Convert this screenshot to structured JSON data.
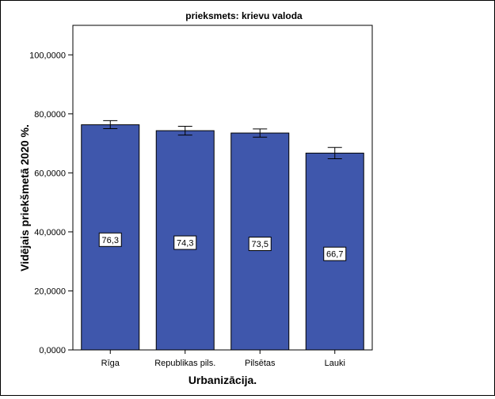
{
  "chart_data": {
    "type": "bar",
    "title": "prieksmets: krievu valoda",
    "xlabel": "Urbanizācija.",
    "ylabel": "Vidējais priekšmetā 2020 %.",
    "categories": [
      "Rīga",
      "Republikas pils.",
      "Pilsētas",
      "Lauki"
    ],
    "values": [
      76.3,
      74.3,
      73.5,
      66.7
    ],
    "data_labels": [
      "76,3",
      "74,3",
      "73,5",
      "66,7"
    ],
    "error_bars": [
      [
        75.0,
        77.7
      ],
      [
        72.8,
        75.8
      ],
      [
        72.1,
        74.9
      ],
      [
        64.8,
        68.6
      ]
    ],
    "ylim": [
      0,
      110
    ],
    "yticks": [
      0,
      20,
      40,
      60,
      80,
      100
    ],
    "ytick_labels": [
      "0,0000",
      "20,0000",
      "40,0000",
      "60,0000",
      "80,0000",
      "100,0000"
    ],
    "bar_color": "#3f57ac",
    "grid": false,
    "legend": "none"
  }
}
